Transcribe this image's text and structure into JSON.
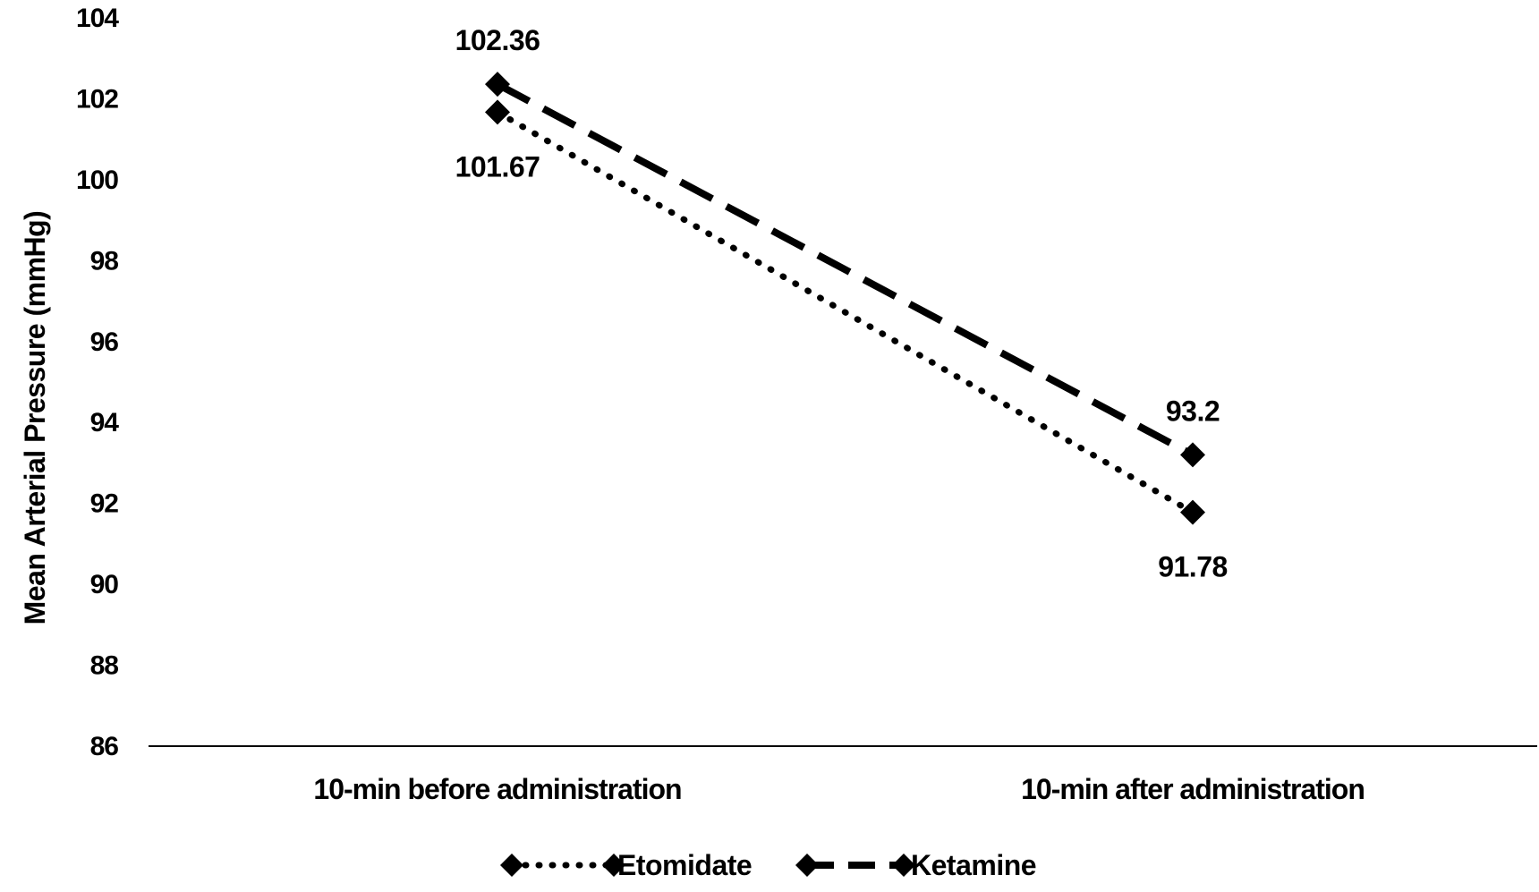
{
  "chart_data": {
    "type": "line",
    "title": "",
    "xlabel": "",
    "ylabel": "Mean Arterial Pressure (mmHg)",
    "categories": [
      "10-min before administration",
      "10-min after administration"
    ],
    "ylim": [
      86,
      104
    ],
    "yticks": [
      86,
      88,
      90,
      92,
      94,
      96,
      98,
      100,
      102,
      104
    ],
    "grid": false,
    "legend": "bottom",
    "series": [
      {
        "name": "Etomidate",
        "values": [
          101.67,
          91.78
        ],
        "labels": [
          "101.67",
          "91.78"
        ],
        "style": "dotted",
        "marker": "diamond",
        "color": "#000000",
        "label_side": [
          "below",
          "below"
        ]
      },
      {
        "name": "Ketamine",
        "values": [
          102.36,
          93.2
        ],
        "labels": [
          "102.36",
          "93.2"
        ],
        "style": "dashed",
        "marker": "diamond",
        "color": "#000000",
        "label_side": [
          "above",
          "above"
        ]
      }
    ]
  }
}
